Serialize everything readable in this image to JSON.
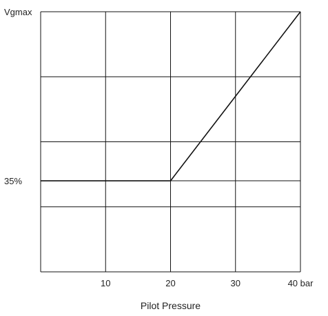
{
  "chart_data": {
    "type": "line",
    "title": "",
    "xlabel": "Pilot Pressure",
    "ylabel": "",
    "x_unit": "bar",
    "xlim": [
      0,
      40
    ],
    "ylim": [
      0,
      100
    ],
    "x_ticks": [
      {
        "value": 10,
        "label": "10"
      },
      {
        "value": 20,
        "label": "20"
      },
      {
        "value": 30,
        "label": "30"
      },
      {
        "value": 40,
        "label": "40 bar"
      }
    ],
    "y_ticks": [
      {
        "value": 35,
        "label": "35%"
      },
      {
        "value": 100,
        "label": "Vgmax"
      }
    ],
    "y_gridlines": [
      0,
      25,
      35,
      50,
      75,
      100
    ],
    "x_gridlines": [
      0,
      10,
      20,
      30,
      40
    ],
    "grid": true,
    "legend": "none",
    "series": [
      {
        "x": [
          0,
          20,
          40
        ],
        "y": [
          35,
          35,
          100
        ],
        "color": "#111111"
      }
    ],
    "colors": {
      "grid": "#111111",
      "line": "#111111",
      "text": "#222222",
      "background": "#ffffff"
    }
  }
}
